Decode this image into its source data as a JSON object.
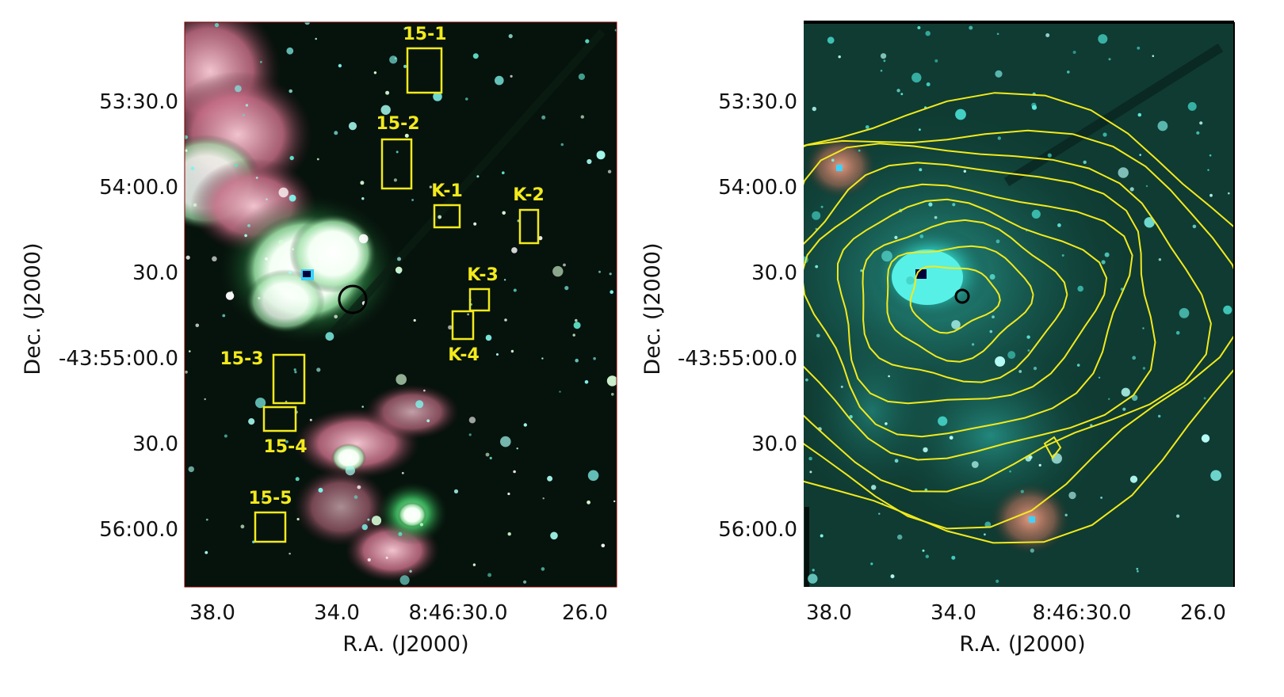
{
  "figure": {
    "colors": {
      "box": "#f2ea1c",
      "contour": "#f2ea1c",
      "nebula_pink": "#d9809a",
      "nebula_green": "#2fbf5a",
      "star_cyan": "#7ff3ea",
      "background_dark": "#06120c",
      "right_background": "#0f3b32"
    },
    "panels": [
      {
        "id": "left",
        "ra_ticks": [
          "38.0",
          "34.0",
          "8:46:30.0",
          "26.0"
        ],
        "dec_ticks": [
          "53:30.0",
          "54:00.0",
          "30.0",
          "-43:55:00.0",
          "30.0",
          "56:00.0"
        ],
        "xlabel": "R.A. (J2000)",
        "ylabel": "Dec. (J2000)",
        "boxes": [
          {
            "label": "15-1"
          },
          {
            "label": "15-2"
          },
          {
            "label": "K-1"
          },
          {
            "label": "K-2"
          },
          {
            "label": "K-3"
          },
          {
            "label": "K-4"
          },
          {
            "label": "15-3"
          },
          {
            "label": "15-4"
          },
          {
            "label": "15-5"
          }
        ]
      },
      {
        "id": "right",
        "ra_ticks": [
          "38.0",
          "34.0",
          "8:46:30.0",
          "26.0"
        ],
        "dec_ticks": [
          "53:30.0",
          "54:00.0",
          "30.0",
          "-43:55:00.0",
          "30.0",
          "56:00.0"
        ],
        "xlabel": "R.A. (J2000)",
        "ylabel": "Dec. (J2000)",
        "contour_levels": 9
      }
    ]
  }
}
